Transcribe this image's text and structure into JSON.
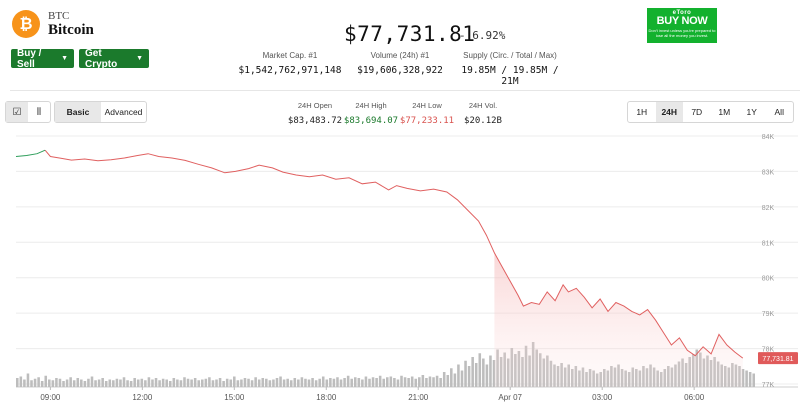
{
  "coin": {
    "symbol": "BTC",
    "name": "Bitcoin",
    "logo_glyph": "₿",
    "logo_color": "#f7931a"
  },
  "actions": {
    "buy_sell": "Buy / Sell",
    "get_crypto": "Get Crypto",
    "accent": "#1b7a2c"
  },
  "price": {
    "value": "$77,731.81",
    "change": "- 6.92%"
  },
  "stats": [
    {
      "label": "Market Cap. #1",
      "value": "$1,542,762,971,148"
    },
    {
      "label": "Volume (24h) #1",
      "value": "$19,606,328,922"
    },
    {
      "label": "Supply (Circ. / Total / Max)",
      "value": "19.85M / 19.85M / 21M"
    }
  ],
  "ad": {
    "brand": "eToro",
    "cta": "BUY NOW",
    "fine": "Don't invest unless you're prepared to lose all the money you invest.",
    "color": "#13b12e"
  },
  "toolbar": {
    "icons": [
      {
        "name": "candlestick-toggle-icon",
        "glyph": "☑"
      },
      {
        "name": "line-toggle-icon",
        "glyph": "⫴"
      }
    ],
    "modes": [
      {
        "label": "Basic",
        "active": true
      },
      {
        "label": "Advanced",
        "active": false
      }
    ],
    "ranges": [
      "1H",
      "24H",
      "7D",
      "1M",
      "1Y",
      "All"
    ],
    "active_range": "24H"
  },
  "ohlc": [
    {
      "label": "24H Open",
      "value": "$83,483.72",
      "color": "#222222"
    },
    {
      "label": "24H High",
      "value": "$83,694.07",
      "color": "#1b7a2c"
    },
    {
      "label": "24H Low",
      "value": "$77,233.11",
      "color": "#d9534f"
    },
    {
      "label": "24H Vol.",
      "value": "$20.12B",
      "color": "#222222"
    }
  ],
  "chart_data": {
    "type": "line",
    "x_tick_labels": [
      "09:00",
      "12:00",
      "15:00",
      "18:00",
      "21:00",
      "Apr 07",
      "03:00",
      "06:00"
    ],
    "y_tick_labels": [
      "84K",
      "83K",
      "82K",
      "81K",
      "80K",
      "79K",
      "78K",
      "77K"
    ],
    "ylim": [
      77000,
      84000
    ],
    "current_price_label": "77,731.81",
    "grid": true,
    "line_color_up": "#2e9e5b",
    "line_color_down": "#e06060",
    "price": [
      [
        0,
        83420
      ],
      [
        0.4,
        83450
      ],
      [
        0.8,
        83500
      ],
      [
        1.1,
        83600
      ],
      [
        1.3,
        83420
      ],
      [
        1.7,
        83370
      ],
      [
        2.1,
        83320
      ],
      [
        2.6,
        83350
      ],
      [
        3.1,
        83300
      ],
      [
        3.6,
        83330
      ],
      [
        4.1,
        83380
      ],
      [
        4.6,
        83450
      ],
      [
        5.0,
        83500
      ],
      [
        5.4,
        83420
      ],
      [
        5.9,
        83380
      ],
      [
        6.4,
        83310
      ],
      [
        6.9,
        83200
      ],
      [
        7.4,
        83100
      ],
      [
        7.9,
        82960
      ],
      [
        8.3,
        83000
      ],
      [
        8.8,
        83080
      ],
      [
        9.2,
        83180
      ],
      [
        9.7,
        83100
      ],
      [
        10.1,
        82980
      ],
      [
        10.6,
        82900
      ],
      [
        11.1,
        82850
      ],
      [
        11.6,
        82900
      ],
      [
        12.1,
        82780
      ],
      [
        12.6,
        82820
      ],
      [
        13.1,
        82650
      ],
      [
        13.6,
        82700
      ],
      [
        14.1,
        82480
      ],
      [
        14.4,
        82600
      ],
      [
        14.8,
        82520
      ],
      [
        15.3,
        82450
      ],
      [
        15.8,
        82500
      ],
      [
        16.3,
        82420
      ],
      [
        16.7,
        82200
      ],
      [
        17.1,
        81900
      ],
      [
        17.5,
        81600
      ],
      [
        17.8,
        81200
      ],
      [
        18.1,
        80700
      ],
      [
        18.4,
        80300
      ],
      [
        18.7,
        79900
      ],
      [
        19.0,
        79500
      ],
      [
        19.2,
        79200
      ],
      [
        19.5,
        79300
      ],
      [
        19.8,
        79250
      ],
      [
        20.1,
        79600
      ],
      [
        20.4,
        79350
      ],
      [
        20.7,
        79800
      ],
      [
        20.9,
        79600
      ],
      [
        21.2,
        79700
      ],
      [
        21.5,
        79450
      ],
      [
        21.8,
        79150
      ],
      [
        22.1,
        79400
      ],
      [
        22.4,
        79050
      ],
      [
        22.7,
        79300
      ],
      [
        23.0,
        79200
      ],
      [
        23.3,
        79050
      ],
      [
        23.6,
        78950
      ],
      [
        23.9,
        79100
      ],
      [
        24.2,
        78800
      ],
      [
        24.5,
        78450
      ],
      [
        24.8,
        78100
      ],
      [
        25.1,
        78300
      ],
      [
        25.4,
        77950
      ],
      [
        25.7,
        77800
      ],
      [
        26.0,
        78050
      ],
      [
        26.3,
        77850
      ],
      [
        26.6,
        78400
      ],
      [
        26.9,
        78100
      ],
      [
        27.2,
        77900
      ],
      [
        27.5,
        77731.81
      ]
    ],
    "volume": [
      12,
      14,
      10,
      18,
      9,
      11,
      13,
      8,
      15,
      10,
      9,
      12,
      11,
      8,
      10,
      13,
      9,
      12,
      10,
      8,
      11,
      14,
      9,
      10,
      12,
      8,
      10,
      9,
      11,
      10,
      13,
      9,
      8,
      12,
      10,
      11,
      9,
      13,
      10,
      12,
      9,
      11,
      10,
      8,
      12,
      10,
      9,
      13,
      11,
      10,
      12,
      9,
      10,
      11,
      13,
      9,
      10,
      12,
      8,
      11,
      10,
      14,
      9,
      10,
      12,
      11,
      9,
      13,
      10,
      12,
      11,
      9,
      10,
      12,
      14,
      10,
      11,
      9,
      12,
      10,
      13,
      11,
      10,
      12,
      9,
      11,
      14,
      10,
      12,
      11,
      13,
      10,
      12,
      15,
      11,
      13,
      12,
      10,
      14,
      11,
      13,
      12,
      15,
      11,
      13,
      14,
      12,
      10,
      15,
      13,
      12,
      14,
      11,
      13,
      16,
      12,
      14,
      13,
      15,
      12,
      20,
      16,
      25,
      18,
      30,
      22,
      35,
      28,
      40,
      32,
      45,
      38,
      30,
      42,
      36,
      50,
      40,
      46,
      38,
      52,
      44,
      48,
      40,
      55,
      42,
      60,
      50,
      45,
      38,
      42,
      35,
      30,
      28,
      32,
      26,
      30,
      24,
      28,
      22,
      26,
      20,
      24,
      22,
      18,
      20,
      24,
      22,
      28,
      26,
      30,
      24,
      22,
      20,
      26,
      24,
      22,
      28,
      25,
      30,
      26,
      22,
      20,
      24,
      28,
      26,
      30,
      34,
      38,
      32,
      40,
      44,
      50,
      46,
      38,
      42,
      36,
      40,
      34,
      30,
      28,
      26,
      32,
      30,
      28,
      24,
      22,
      20,
      18
    ]
  }
}
